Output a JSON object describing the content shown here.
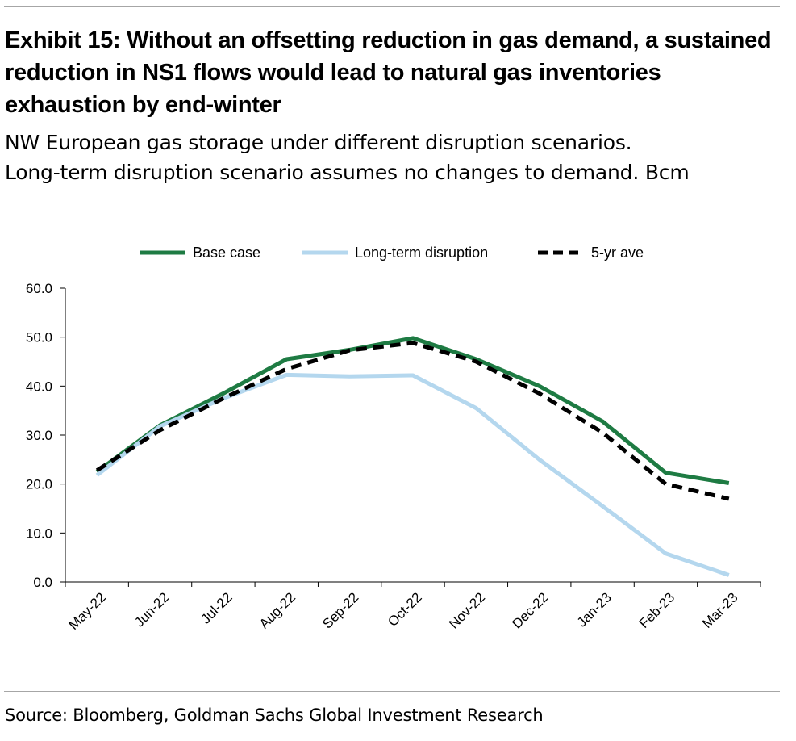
{
  "exhibit": {
    "title": "Exhibit 15: Without an offsetting reduction in gas demand, a sustained reduction in NS1 flows would lead to natural gas inventories exhaustion by end-winter",
    "subtitle_line1": "NW European gas storage under different disruption scenarios.",
    "subtitle_line2": "Long-term disruption scenario assumes no changes to demand. Bcm",
    "source": "Source: Bloomberg, Goldman Sachs Global Investment Research"
  },
  "chart_data": {
    "type": "line",
    "title": "",
    "xlabel": "",
    "ylabel": "",
    "ylim": [
      0,
      60
    ],
    "yticks": [
      "0.0",
      "10.0",
      "20.0",
      "30.0",
      "40.0",
      "50.0",
      "60.0"
    ],
    "grid": false,
    "legend_position": "top-center",
    "categories": [
      "May-22",
      "Jun-22",
      "Jul-22",
      "Aug-22",
      "Sep-22",
      "Oct-22",
      "Nov-22",
      "Dec-22",
      "Jan-23",
      "Feb-23",
      "Mar-23"
    ],
    "series": [
      {
        "name": "Base case",
        "color": "#1e7b43",
        "style": "solid",
        "points": [
          {
            "x": 0.0,
            "y": 22.5
          },
          {
            "x": 1.0,
            "y": 32.0
          },
          {
            "x": 2.0,
            "y": 38.5
          },
          {
            "x": 3.0,
            "y": 45.5
          },
          {
            "x": 4.0,
            "y": 47.4
          },
          {
            "x": 5.0,
            "y": 49.8
          },
          {
            "x": 6.0,
            "y": 45.5
          },
          {
            "x": 7.0,
            "y": 40.0
          },
          {
            "x": 8.0,
            "y": 32.8
          },
          {
            "x": 9.0,
            "y": 22.3
          },
          {
            "x": 10.0,
            "y": 20.2
          }
        ]
      },
      {
        "name": "Long-term disruption",
        "color": "#b4d7ee",
        "style": "solid",
        "points": [
          {
            "x": 0.0,
            "y": 21.8
          },
          {
            "x": 1.0,
            "y": 31.8
          },
          {
            "x": 2.0,
            "y": 37.5
          },
          {
            "x": 3.0,
            "y": 42.3
          },
          {
            "x": 4.0,
            "y": 42.0
          },
          {
            "x": 5.0,
            "y": 42.2
          },
          {
            "x": 6.0,
            "y": 35.5
          },
          {
            "x": 7.0,
            "y": 25.0
          },
          {
            "x": 8.0,
            "y": 15.5
          },
          {
            "x": 9.0,
            "y": 5.8
          },
          {
            "x": 10.0,
            "y": 1.4
          }
        ]
      },
      {
        "name": "5-yr ave",
        "color": "#000000",
        "style": "dashed",
        "points": [
          {
            "x": 0.0,
            "y": 22.8
          },
          {
            "x": 1.0,
            "y": 31.0
          },
          {
            "x": 2.0,
            "y": 37.5
          },
          {
            "x": 3.0,
            "y": 43.5
          },
          {
            "x": 4.0,
            "y": 47.3
          },
          {
            "x": 5.0,
            "y": 48.8
          },
          {
            "x": 6.0,
            "y": 45.0
          },
          {
            "x": 7.0,
            "y": 38.5
          },
          {
            "x": 8.0,
            "y": 30.5
          },
          {
            "x": 9.0,
            "y": 20.0
          },
          {
            "x": 10.0,
            "y": 17.0
          }
        ]
      }
    ]
  }
}
